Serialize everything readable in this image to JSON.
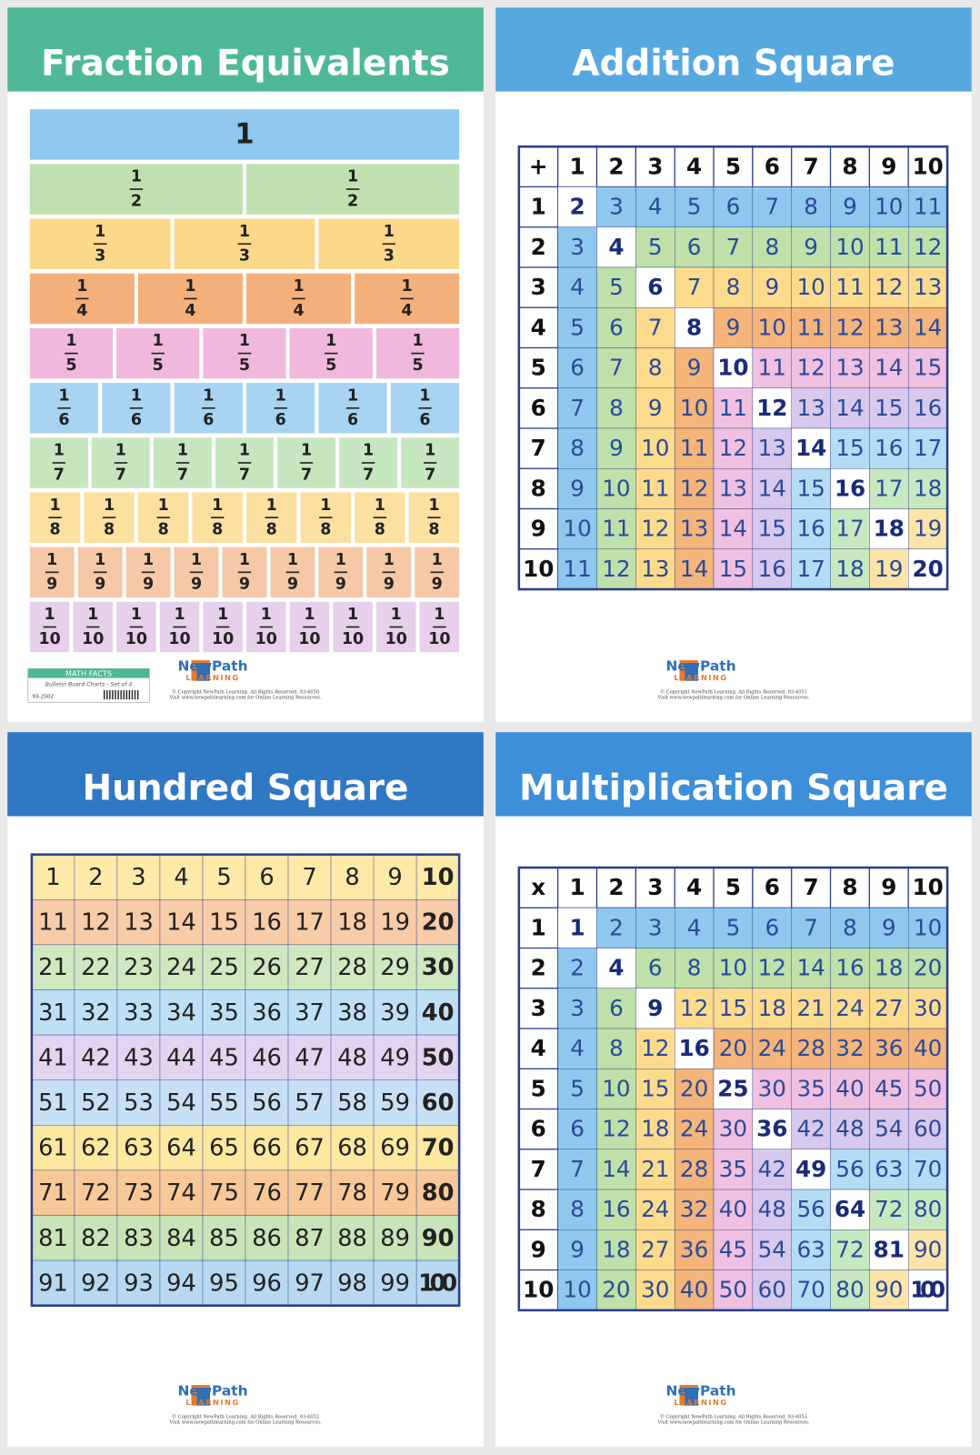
{
  "posters": [
    {
      "title": "Fraction Equivalents",
      "fractions": [
        [
          {
            "n": "1"
          }
        ],
        [
          {
            "n": "1",
            "d": "2"
          },
          {
            "n": "1",
            "d": "2"
          }
        ],
        [
          {
            "n": "1",
            "d": "3"
          },
          {
            "n": "1",
            "d": "3"
          },
          {
            "n": "1",
            "d": "3"
          }
        ],
        [
          {
            "n": "1",
            "d": "4"
          },
          {
            "n": "1",
            "d": "4"
          },
          {
            "n": "1",
            "d": "4"
          },
          {
            "n": "1",
            "d": "4"
          }
        ],
        [
          {
            "n": "1",
            "d": "5"
          },
          {
            "n": "1",
            "d": "5"
          },
          {
            "n": "1",
            "d": "5"
          },
          {
            "n": "1",
            "d": "5"
          },
          {
            "n": "1",
            "d": "5"
          }
        ],
        [
          {
            "n": "1",
            "d": "6"
          },
          {
            "n": "1",
            "d": "6"
          },
          {
            "n": "1",
            "d": "6"
          },
          {
            "n": "1",
            "d": "6"
          },
          {
            "n": "1",
            "d": "6"
          },
          {
            "n": "1",
            "d": "6"
          }
        ],
        [
          {
            "n": "1",
            "d": "7"
          },
          {
            "n": "1",
            "d": "7"
          },
          {
            "n": "1",
            "d": "7"
          },
          {
            "n": "1",
            "d": "7"
          },
          {
            "n": "1",
            "d": "7"
          },
          {
            "n": "1",
            "d": "7"
          },
          {
            "n": "1",
            "d": "7"
          }
        ],
        [
          {
            "n": "1",
            "d": "8"
          },
          {
            "n": "1",
            "d": "8"
          },
          {
            "n": "1",
            "d": "8"
          },
          {
            "n": "1",
            "d": "8"
          },
          {
            "n": "1",
            "d": "8"
          },
          {
            "n": "1",
            "d": "8"
          },
          {
            "n": "1",
            "d": "8"
          },
          {
            "n": "1",
            "d": "8"
          }
        ],
        [
          {
            "n": "1",
            "d": "9"
          },
          {
            "n": "1",
            "d": "9"
          },
          {
            "n": "1",
            "d": "9"
          },
          {
            "n": "1",
            "d": "9"
          },
          {
            "n": "1",
            "d": "9"
          },
          {
            "n": "1",
            "d": "9"
          },
          {
            "n": "1",
            "d": "9"
          },
          {
            "n": "1",
            "d": "9"
          },
          {
            "n": "1",
            "d": "9"
          }
        ],
        [
          {
            "n": "1",
            "d": "10"
          },
          {
            "n": "1",
            "d": "10"
          },
          {
            "n": "1",
            "d": "10"
          },
          {
            "n": "1",
            "d": "10"
          },
          {
            "n": "1",
            "d": "10"
          },
          {
            "n": "1",
            "d": "10"
          },
          {
            "n": "1",
            "d": "10"
          },
          {
            "n": "1",
            "d": "10"
          },
          {
            "n": "1",
            "d": "10"
          },
          {
            "n": "1",
            "d": "10"
          }
        ]
      ],
      "label": {
        "title": "MATH FACTS",
        "subtitle": "Bulletin Board Charts - Set of 4",
        "code": "93-2502"
      },
      "footer": {
        "logo": "NewPath",
        "logo_sub": "LEARNING",
        "copyright": "© Copyright NewPath Learning. All Rights Reserved. 93-4050",
        "visit": "Visit www.newpathlearning.com for Online Learning Resources."
      }
    },
    {
      "title": "Addition Square",
      "table": [
        [
          "+",
          1,
          2,
          3,
          4,
          5,
          6,
          7,
          8,
          9,
          10
        ],
        [
          1,
          2,
          3,
          4,
          5,
          6,
          7,
          8,
          9,
          10,
          11
        ],
        [
          2,
          3,
          4,
          5,
          6,
          7,
          8,
          9,
          10,
          11,
          12
        ],
        [
          3,
          4,
          5,
          6,
          7,
          8,
          9,
          10,
          11,
          12,
          13
        ],
        [
          4,
          5,
          6,
          7,
          8,
          9,
          10,
          11,
          12,
          13,
          14
        ],
        [
          5,
          6,
          7,
          8,
          9,
          10,
          11,
          12,
          13,
          14,
          15
        ],
        [
          6,
          7,
          8,
          9,
          10,
          11,
          12,
          13,
          14,
          15,
          16
        ],
        [
          7,
          8,
          9,
          10,
          11,
          12,
          13,
          14,
          15,
          16,
          17
        ],
        [
          8,
          9,
          10,
          11,
          12,
          13,
          14,
          15,
          16,
          17,
          18
        ],
        [
          9,
          10,
          11,
          12,
          13,
          14,
          15,
          16,
          17,
          18,
          19
        ],
        [
          10,
          11,
          12,
          13,
          14,
          15,
          16,
          17,
          18,
          19,
          20
        ]
      ],
      "footer": {
        "logo": "NewPath",
        "logo_sub": "LEARNING",
        "copyright": "© Copyright NewPath Learning. All Rights Reserved. 93-4051",
        "visit": "Visit www.newpathlearning.com for Online Learning Resources."
      }
    },
    {
      "title": "Hundred Square",
      "table": [
        [
          1,
          2,
          3,
          4,
          5,
          6,
          7,
          8,
          9,
          10
        ],
        [
          11,
          12,
          13,
          14,
          15,
          16,
          17,
          18,
          19,
          20
        ],
        [
          21,
          22,
          23,
          24,
          25,
          26,
          27,
          28,
          29,
          30
        ],
        [
          31,
          32,
          33,
          34,
          35,
          36,
          37,
          38,
          39,
          40
        ],
        [
          41,
          42,
          43,
          44,
          45,
          46,
          47,
          48,
          49,
          50
        ],
        [
          51,
          52,
          53,
          54,
          55,
          56,
          57,
          58,
          59,
          60
        ],
        [
          61,
          62,
          63,
          64,
          65,
          66,
          67,
          68,
          69,
          70
        ],
        [
          71,
          72,
          73,
          74,
          75,
          76,
          77,
          78,
          79,
          80
        ],
        [
          81,
          82,
          83,
          84,
          85,
          86,
          87,
          88,
          89,
          90
        ],
        [
          91,
          92,
          93,
          94,
          95,
          96,
          97,
          98,
          99,
          100
        ]
      ],
      "footer": {
        "logo": "NewPath",
        "logo_sub": "LEARNING",
        "copyright": "© Copyright NewPath Learning. All Rights Reserved. 93-4052",
        "visit": "Visit www.newpathlearning.com for Online Learning Resources."
      }
    },
    {
      "title": "Multiplication Square",
      "table": [
        [
          "x",
          1,
          2,
          3,
          4,
          5,
          6,
          7,
          8,
          9,
          10
        ],
        [
          1,
          1,
          2,
          3,
          4,
          5,
          6,
          7,
          8,
          9,
          10
        ],
        [
          2,
          2,
          4,
          6,
          8,
          10,
          12,
          14,
          16,
          18,
          20
        ],
        [
          3,
          3,
          6,
          9,
          12,
          15,
          18,
          21,
          24,
          27,
          30
        ],
        [
          4,
          4,
          8,
          12,
          16,
          20,
          24,
          28,
          32,
          36,
          40
        ],
        [
          5,
          5,
          10,
          15,
          20,
          25,
          30,
          35,
          40,
          45,
          50
        ],
        [
          6,
          6,
          12,
          18,
          24,
          30,
          36,
          42,
          48,
          54,
          60
        ],
        [
          7,
          7,
          14,
          21,
          28,
          35,
          42,
          49,
          56,
          63,
          70
        ],
        [
          8,
          8,
          16,
          24,
          32,
          40,
          48,
          56,
          64,
          72,
          80
        ],
        [
          9,
          9,
          18,
          27,
          36,
          45,
          54,
          63,
          72,
          81,
          90
        ],
        [
          10,
          10,
          20,
          30,
          40,
          50,
          60,
          70,
          80,
          90,
          100
        ]
      ],
      "footer": {
        "logo": "NewPath",
        "logo_sub": "LEARNING",
        "copyright": "© Copyright NewPath Learning. All Rights Reserved. 93-4053",
        "visit": "Visit www.newpathlearning.com for Online Learning Resources."
      }
    }
  ]
}
